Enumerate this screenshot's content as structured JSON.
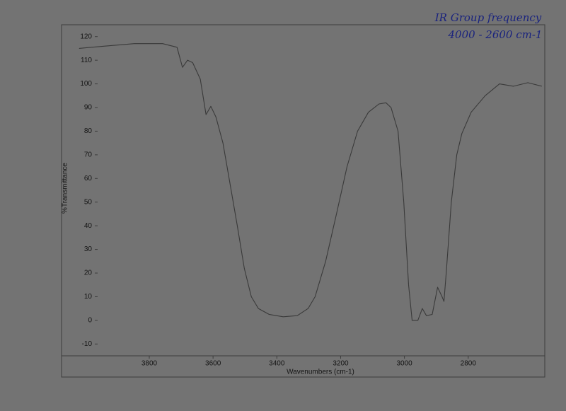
{
  "chart_data": {
    "type": "line",
    "annotations": [
      "IR Group frequency",
      "4000 - 2600 cm-1"
    ],
    "xlabel": "Wavenumbers (cm-1)",
    "ylabel": "%Transmittance",
    "x": [
      4020,
      3936,
      3847,
      3758,
      3713,
      3696,
      3680,
      3664,
      3640,
      3622,
      3607,
      3591,
      3569,
      3547,
      3524,
      3502,
      3480,
      3458,
      3424,
      3380,
      3336,
      3302,
      3280,
      3247,
      3213,
      3180,
      3147,
      3113,
      3080,
      3058,
      3042,
      3020,
      3002,
      2987,
      2976,
      2958,
      2944,
      2931,
      2913,
      2896,
      2882,
      2876,
      2869,
      2853,
      2836,
      2820,
      2791,
      2747,
      2702,
      2658,
      2613,
      2569
    ],
    "values": [
      115,
      116,
      117,
      117,
      115.5,
      107,
      110,
      109,
      102,
      87,
      90.5,
      86,
      75,
      58,
      40,
      22,
      10,
      5,
      2.5,
      1.5,
      2,
      5,
      10,
      25,
      45,
      65,
      80,
      88,
      91.5,
      92,
      90,
      80,
      50,
      15,
      0,
      0,
      5,
      2,
      2.5,
      14,
      10,
      8,
      20,
      50,
      70,
      79,
      88,
      95,
      100,
      99,
      100.5,
      99
    ],
    "color": "#3a3a3a",
    "xlim": [
      4075,
      2560
    ],
    "ylim": [
      -15,
      125
    ],
    "xticks": [
      3800,
      3600,
      3400,
      3200,
      3000,
      2800
    ],
    "yticks": [
      -10,
      0,
      10,
      20,
      30,
      40,
      50,
      60,
      70,
      80,
      90,
      100,
      110,
      120
    ]
  }
}
